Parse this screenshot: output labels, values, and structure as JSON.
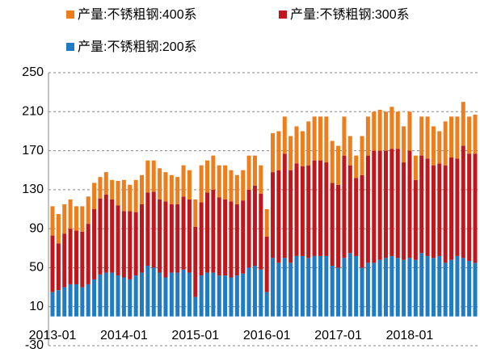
{
  "chart_data": {
    "type": "stacked-bar",
    "categories": [
      "2013-01",
      null,
      null,
      null,
      null,
      null,
      null,
      null,
      null,
      null,
      null,
      null,
      "2014-01",
      null,
      null,
      null,
      null,
      null,
      null,
      null,
      null,
      null,
      null,
      null,
      "2015-01",
      null,
      null,
      null,
      null,
      null,
      null,
      null,
      null,
      null,
      null,
      null,
      "2016-01",
      null,
      null,
      null,
      null,
      null,
      null,
      null,
      null,
      null,
      null,
      null,
      "2017-01",
      null,
      null,
      null,
      null,
      null,
      null,
      null,
      null,
      null,
      null,
      null,
      "2018-01",
      null,
      null,
      null,
      null,
      null,
      null,
      null,
      null,
      null,
      null,
      null
    ],
    "series": [
      {
        "name": "产量:不锈粗钢:400系",
        "color": "#ee7d1c",
        "values": [
          30,
          30,
          30,
          30,
          25,
          26,
          28,
          27,
          22,
          23,
          20,
          25,
          32,
          27,
          33,
          30,
          33,
          32,
          32,
          30,
          30,
          28,
          32,
          30,
          28,
          38,
          33,
          35,
          33,
          35,
          32,
          30,
          31,
          35,
          31,
          29,
          28,
          40,
          40,
          38,
          35,
          38,
          36,
          45,
          45,
          45,
          47,
          43,
          40,
          40,
          30,
          23,
          40,
          40,
          40,
          42,
          40,
          43,
          38,
          37,
          40,
          25,
          40,
          43,
          40,
          33,
          45,
          42,
          43,
          45,
          38,
          40
        ]
      },
      {
        "name": "产量:不锈粗钢:300系",
        "color": "#c0161c",
        "values": [
          58,
          48,
          55,
          57,
          55,
          57,
          62,
          72,
          78,
          80,
          75,
          72,
          68,
          70,
          65,
          70,
          75,
          78,
          75,
          78,
          70,
          70,
          75,
          75,
          72,
          75,
          82,
          85,
          80,
          78,
          78,
          73,
          75,
          80,
          82,
          78,
          57,
          88,
          95,
          107,
          95,
          95,
          92,
          95,
          98,
          98,
          96,
          85,
          85,
          105,
          90,
          80,
          95,
          110,
          115,
          112,
          110,
          110,
          112,
          100,
          110,
          82,
          100,
          100,
          95,
          95,
          100,
          105,
          100,
          115,
          110,
          112
        ]
      },
      {
        "name": "产量:不锈粗钢:200系",
        "color": "#1f7bc4",
        "values": [
          25,
          27,
          30,
          33,
          33,
          30,
          33,
          38,
          43,
          45,
          45,
          42,
          40,
          38,
          42,
          45,
          52,
          50,
          45,
          40,
          45,
          45,
          48,
          45,
          20,
          42,
          45,
          45,
          42,
          42,
          40,
          42,
          44,
          50,
          52,
          48,
          25,
          60,
          55,
          60,
          55,
          62,
          62,
          60,
          62,
          62,
          62,
          52,
          50,
          60,
          65,
          62,
          50,
          55,
          55,
          58,
          60,
          62,
          60,
          58,
          60,
          58,
          65,
          62,
          60,
          62,
          55,
          58,
          62,
          60,
          57,
          55
        ]
      }
    ],
    "ylim": [
      -30,
      250
    ],
    "yticks": [
      -30,
      10,
      50,
      90,
      130,
      170,
      210,
      250
    ],
    "grid": true
  }
}
